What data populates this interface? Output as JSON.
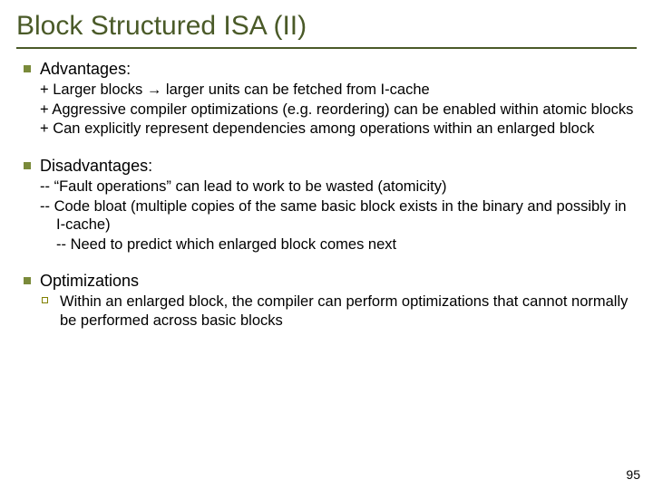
{
  "title": "Block Structured ISA (II)",
  "sections": {
    "advantages": {
      "heading": "Advantages:",
      "items": [
        "+ Larger blocks → larger units can be fetched from I-cache",
        "+ Aggressive compiler optimizations (e.g. reordering) can be enabled within atomic blocks",
        "+ Can explicitly represent dependencies among operations within an enlarged block"
      ]
    },
    "disadvantages": {
      "heading": "Disadvantages:",
      "items": [
        "-- “Fault operations” can lead to work to be wasted (atomicity)",
        "-- Code bloat (multiple copies of the same basic block exists in the binary and possibly in I-cache)"
      ],
      "subitem": "-- Need to predict which enlarged block comes next"
    },
    "optimizations": {
      "heading": "Optimizations",
      "item": "Within an enlarged block, the compiler can perform optimizations that cannot normally be performed across basic blocks"
    }
  },
  "page_number": "95",
  "colors": {
    "title_color": "#4a5a28",
    "rule_color": "#4a5a28",
    "bullet_color": "#7a8a3a",
    "hollow_bullet": "#808000",
    "bg": "#ffffff"
  }
}
